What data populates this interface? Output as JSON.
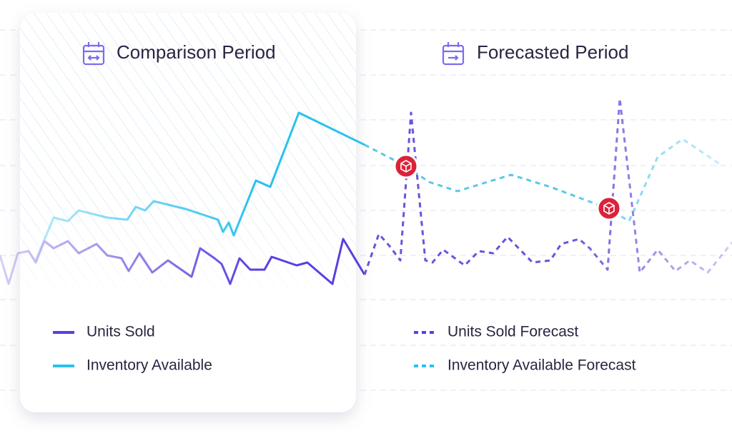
{
  "comparison": {
    "title": "Comparison Period",
    "legend": [
      "Units Sold",
      "Inventory Available"
    ]
  },
  "forecast": {
    "title": "Forecasted Period",
    "legend": [
      "Units Sold Forecast",
      "Inventory Available Forecast"
    ]
  }
}
